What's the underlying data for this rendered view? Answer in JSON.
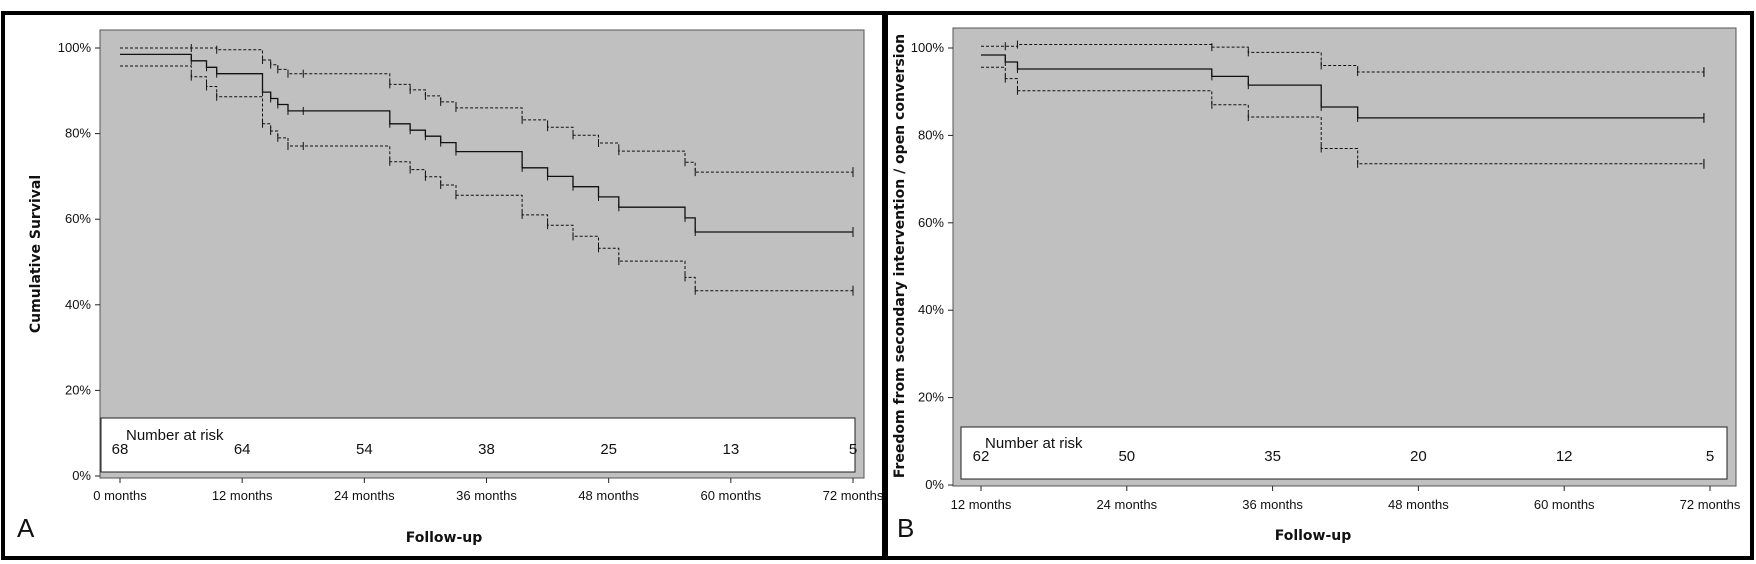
{
  "chart_data": [
    {
      "type": "line",
      "panel_label": "A",
      "ylabel": "Cumulative Survival",
      "xlabel": "Follow-up",
      "ylim": [
        0,
        100
      ],
      "xlim": [
        0,
        72
      ],
      "y_ticks": [
        "0%",
        "20%",
        "40%",
        "60%",
        "80%",
        "100%"
      ],
      "y_tick_values": [
        0,
        20,
        40,
        60,
        80,
        100
      ],
      "x_ticks": [
        "0 months",
        "12 months",
        "24 months",
        "36 months",
        "48 months",
        "60 months",
        "72 months"
      ],
      "x_tick_values": [
        0,
        12,
        24,
        36,
        48,
        60,
        72
      ],
      "grid": false,
      "number_at_risk": {
        "title": "Number at risk",
        "x": [
          0,
          12,
          24,
          36,
          48,
          60,
          72
        ],
        "values": [
          "68",
          "64",
          "54",
          "38",
          "25",
          "13",
          "5"
        ]
      },
      "series": [
        {
          "style": "solid",
          "x": [
            0,
            7,
            8.5,
            9.5,
            14,
            14.8,
            15.5,
            16.5,
            18,
            26.5,
            28.5,
            30,
            31.5,
            33,
            39.5,
            42,
            44.5,
            47,
            49,
            55.5,
            56.5,
            72
          ],
          "y": [
            98.5,
            97,
            95.5,
            94,
            89.7,
            88.2,
            86.8,
            85.3,
            85.3,
            82.3,
            80.8,
            79.4,
            77.9,
            75.8,
            72,
            70,
            67.6,
            65.2,
            62.8,
            60.3,
            57,
            57
          ]
        },
        {
          "style": "dashed",
          "x": [
            0,
            7,
            9.5,
            14,
            14.8,
            15.5,
            16.5,
            18,
            26.5,
            28.5,
            30,
            31.5,
            33,
            39.5,
            42,
            44.5,
            47,
            49,
            55.5,
            56.5,
            72
          ],
          "y": [
            100,
            100,
            99.6,
            97.2,
            96.1,
            95,
            94,
            94,
            91.5,
            90.2,
            88.8,
            87.4,
            86,
            83.2,
            81.5,
            79.6,
            77.8,
            75.9,
            73.3,
            71,
            71
          ]
        },
        {
          "style": "dashed",
          "x": [
            0,
            7,
            8.5,
            9.5,
            14,
            14.8,
            15.5,
            16.5,
            18,
            26.5,
            28.5,
            30,
            31.5,
            33,
            39.5,
            42,
            44.5,
            47,
            49,
            55.5,
            56.5,
            72
          ],
          "y": [
            95.8,
            93.3,
            91,
            88.6,
            82.3,
            80.6,
            79,
            77.1,
            77.1,
            73.4,
            71.6,
            69.9,
            68,
            65.6,
            61,
            58.6,
            56,
            53.2,
            50.2,
            46.4,
            43.3,
            43.3
          ]
        }
      ]
    },
    {
      "type": "line",
      "panel_label": "B",
      "ylabel": "Freedom from secondary intervention / open conversion",
      "xlabel": "Follow-up",
      "ylim": [
        0,
        100
      ],
      "xlim": [
        12,
        72
      ],
      "y_ticks": [
        "0%",
        "20%",
        "40%",
        "60%",
        "80%",
        "100%"
      ],
      "y_tick_values": [
        0,
        20,
        40,
        60,
        80,
        100
      ],
      "x_ticks": [
        "12 months",
        "24 months",
        "36 months",
        "48 months",
        "60 months",
        "72 months"
      ],
      "x_tick_values": [
        12,
        24,
        36,
        48,
        60,
        72
      ],
      "grid": false,
      "number_at_risk": {
        "title": "Number at risk",
        "x": [
          12,
          24,
          36,
          48,
          60,
          72
        ],
        "values": [
          "62",
          "50",
          "35",
          "20",
          "12",
          "5"
        ]
      },
      "series": [
        {
          "style": "solid",
          "x": [
            12,
            14,
            15,
            31,
            34,
            40,
            43,
            71.5
          ],
          "y": [
            98.4,
            96.8,
            95.2,
            93.5,
            91.5,
            86.5,
            84,
            84
          ]
        },
        {
          "style": "dashed",
          "x": [
            12,
            14,
            15,
            31,
            34,
            40,
            43,
            71.5
          ],
          "y": [
            100.4,
            100.4,
            100.8,
            100.2,
            99,
            96,
            94.5,
            94.5
          ]
        },
        {
          "style": "dashed",
          "x": [
            12,
            14,
            15,
            31,
            34,
            40,
            43,
            71.5
          ],
          "y": [
            95.6,
            93,
            90.2,
            87,
            84.2,
            77,
            73.5,
            73.5
          ]
        }
      ]
    }
  ]
}
